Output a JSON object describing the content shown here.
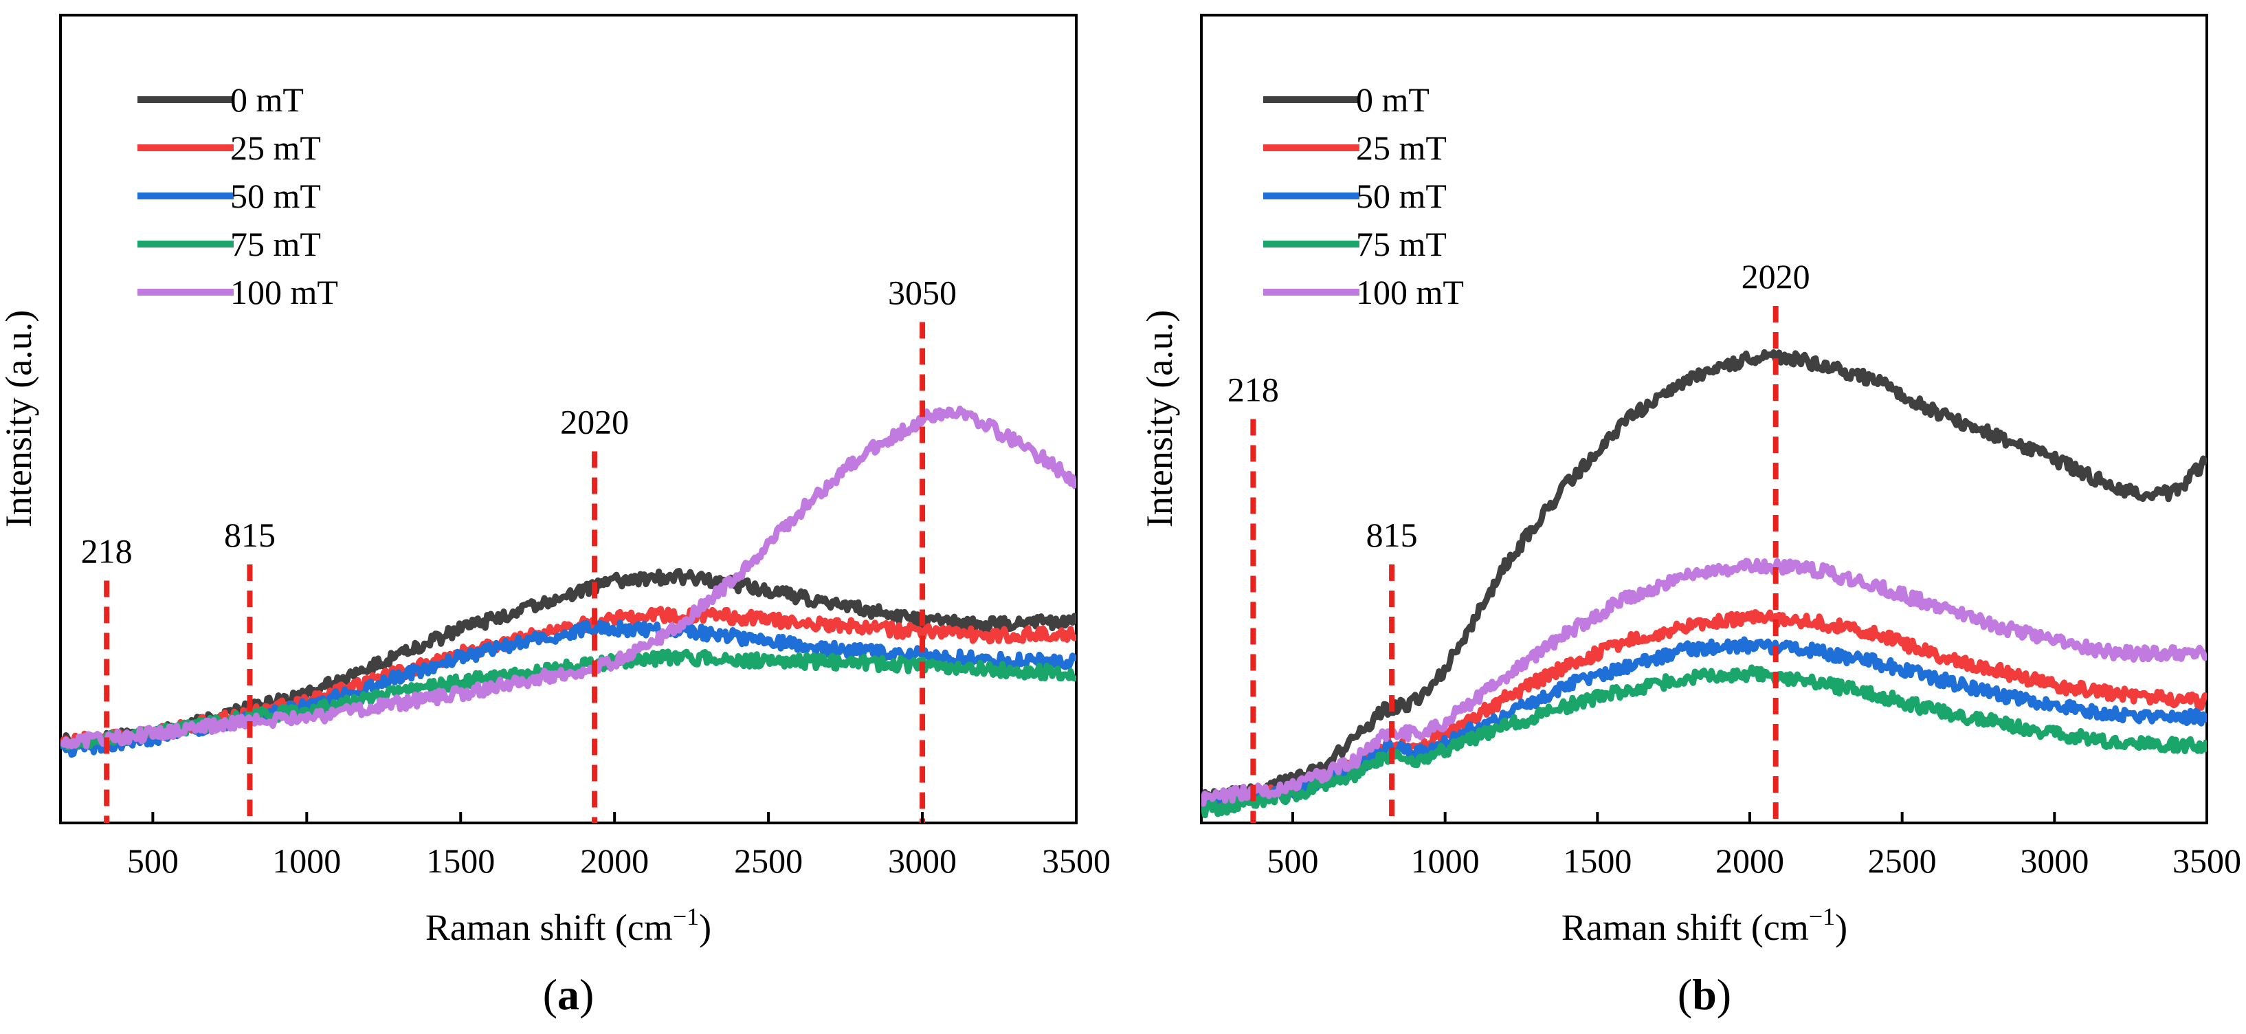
{
  "chart_data": [
    {
      "type": "line",
      "caption_letter": "a",
      "xlabel_main": "Raman shift (cm",
      "xlabel_sup": "−1",
      "xlabel_close": ")",
      "ylabel": "Intensity (a.u.)",
      "xlim": [
        200,
        3500
      ],
      "ylim": [
        0,
        100
      ],
      "y_tick_labels_shown": false,
      "x_ticks": [
        500,
        1000,
        1500,
        2000,
        2500,
        3000,
        3500
      ],
      "legend_position": "top-left",
      "series": [
        {
          "name": "0 mT",
          "color": "#404040",
          "points": [
            [
              200,
              10
            ],
            [
              500,
              11
            ],
            [
              800,
              14
            ],
            [
              1000,
              16
            ],
            [
              1500,
              24
            ],
            [
              2000,
              30
            ],
            [
              2200,
              30.5
            ],
            [
              2400,
              29.5
            ],
            [
              2600,
              28
            ],
            [
              2800,
              26.5
            ],
            [
              3000,
              25
            ],
            [
              3200,
              24.5
            ],
            [
              3500,
              25
            ]
          ]
        },
        {
          "name": "25 mT",
          "color": "#f23b3b",
          "points": [
            [
              200,
              10
            ],
            [
              500,
              11
            ],
            [
              800,
              13.5
            ],
            [
              1000,
              15
            ],
            [
              1500,
              21
            ],
            [
              2000,
              25.5
            ],
            [
              2200,
              25.8
            ],
            [
              2400,
              25.5
            ],
            [
              2600,
              24.8
            ],
            [
              2800,
              24.2
            ],
            [
              3000,
              23.6
            ],
            [
              3200,
              23.2
            ],
            [
              3500,
              23.5
            ]
          ]
        },
        {
          "name": "50 mT",
          "color": "#1f6fd8",
          "points": [
            [
              200,
              9
            ],
            [
              500,
              10.5
            ],
            [
              800,
              13
            ],
            [
              1000,
              14.5
            ],
            [
              1500,
              20.5
            ],
            [
              1900,
              24
            ],
            [
              2200,
              24
            ],
            [
              2400,
              23
            ],
            [
              2600,
              22
            ],
            [
              2800,
              21.2
            ],
            [
              3000,
              20.8
            ],
            [
              3200,
              20.2
            ],
            [
              3500,
              20
            ]
          ]
        },
        {
          "name": "75 mT",
          "color": "#1aa66a",
          "points": [
            [
              200,
              10
            ],
            [
              500,
              11
            ],
            [
              800,
              13
            ],
            [
              1000,
              14
            ],
            [
              1500,
              17.5
            ],
            [
              2000,
              20
            ],
            [
              2200,
              20.5
            ],
            [
              2400,
              20.2
            ],
            [
              2600,
              20
            ],
            [
              2800,
              19.8
            ],
            [
              3000,
              19.5
            ],
            [
              3200,
              19
            ],
            [
              3500,
              18.5
            ]
          ]
        },
        {
          "name": "100 mT",
          "color": "#c07ae0",
          "points": [
            [
              200,
              10
            ],
            [
              500,
              11
            ],
            [
              800,
              12.5
            ],
            [
              1000,
              13
            ],
            [
              1500,
              16
            ],
            [
              1900,
              19
            ],
            [
              2000,
              20
            ],
            [
              2200,
              24
            ],
            [
              2400,
              30.5
            ],
            [
              2600,
              38.5
            ],
            [
              2800,
              45.5
            ],
            [
              3000,
              50
            ],
            [
              3100,
              51
            ],
            [
              3200,
              49.5
            ],
            [
              3400,
              45
            ],
            [
              3500,
              42
            ]
          ]
        }
      ],
      "annotations": [
        {
          "x": 350,
          "y_top": 30,
          "label": "218",
          "label_at": 350
        },
        {
          "x": 815,
          "y_top": 32,
          "label": "815",
          "label_at": 815
        },
        {
          "x": 1935,
          "y_top": 46,
          "label": "2020",
          "label_at": 1935
        },
        {
          "x": 3000,
          "y_top": 62,
          "label": "3050",
          "label_at": 3000
        }
      ]
    },
    {
      "type": "line",
      "caption_letter": "b",
      "xlabel_main": "Raman shift (cm",
      "xlabel_sup": "−1",
      "xlabel_close": ")",
      "ylabel": "Intensity (a.u.)",
      "xlim": [
        200,
        3500
      ],
      "ylim": [
        0,
        100
      ],
      "y_tick_labels_shown": false,
      "x_ticks": [
        500,
        1000,
        1500,
        2000,
        2500,
        3000,
        3500
      ],
      "legend_position": "top-left",
      "series": [
        {
          "name": "0 mT",
          "color": "#404040",
          "points": [
            [
              200,
              3
            ],
            [
              400,
              4
            ],
            [
              600,
              7
            ],
            [
              800,
              14
            ],
            [
              900,
              15
            ],
            [
              1000,
              19
            ],
            [
              1200,
              32
            ],
            [
              1400,
              42
            ],
            [
              1600,
              50
            ],
            [
              1800,
              55
            ],
            [
              2000,
              57.5
            ],
            [
              2100,
              57.8
            ],
            [
              2200,
              57
            ],
            [
              2400,
              55
            ],
            [
              2600,
              51
            ],
            [
              2800,
              48
            ],
            [
              3000,
              45
            ],
            [
              3200,
              41.5
            ],
            [
              3300,
              40.5
            ],
            [
              3400,
              41
            ],
            [
              3500,
              45
            ]
          ]
        },
        {
          "name": "25 mT",
          "color": "#f23b3b",
          "points": [
            [
              200,
              2.5
            ],
            [
              500,
              4
            ],
            [
              700,
              7
            ],
            [
              820,
              10
            ],
            [
              900,
              9
            ],
            [
              1000,
              11
            ],
            [
              1200,
              15.5
            ],
            [
              1400,
              19.5
            ],
            [
              1600,
              22.5
            ],
            [
              1800,
              24.5
            ],
            [
              2000,
              25.5
            ],
            [
              2200,
              25
            ],
            [
              2400,
              23.5
            ],
            [
              2600,
              21
            ],
            [
              2800,
              19
            ],
            [
              3000,
              17
            ],
            [
              3200,
              16
            ],
            [
              3500,
              15
            ]
          ]
        },
        {
          "name": "50 mT",
          "color": "#1f6fd8",
          "points": [
            [
              200,
              2.5
            ],
            [
              500,
              4
            ],
            [
              700,
              6.5
            ],
            [
              820,
              9.5
            ],
            [
              900,
              8.5
            ],
            [
              1000,
              10
            ],
            [
              1200,
              13.5
            ],
            [
              1400,
              17
            ],
            [
              1600,
              19.5
            ],
            [
              1800,
              21.5
            ],
            [
              2000,
              22
            ],
            [
              2200,
              21.3
            ],
            [
              2400,
              20
            ],
            [
              2600,
              18
            ],
            [
              2800,
              16
            ],
            [
              3000,
              14.5
            ],
            [
              3200,
              13.5
            ],
            [
              3500,
              13
            ]
          ]
        },
        {
          "name": "75 mT",
          "color": "#1aa66a",
          "points": [
            [
              200,
              1.5
            ],
            [
              500,
              3.5
            ],
            [
              700,
              6
            ],
            [
              820,
              8.5
            ],
            [
              900,
              7.5
            ],
            [
              1000,
              9
            ],
            [
              1200,
              12
            ],
            [
              1400,
              14.5
            ],
            [
              1600,
              16.5
            ],
            [
              1800,
              18
            ],
            [
              2000,
              18.5
            ],
            [
              2200,
              17.5
            ],
            [
              2400,
              16
            ],
            [
              2600,
              14
            ],
            [
              2800,
              12.5
            ],
            [
              3000,
              11
            ],
            [
              3200,
              10
            ],
            [
              3500,
              9.5
            ]
          ]
        },
        {
          "name": "100 mT",
          "color": "#c07ae0",
          "points": [
            [
              200,
              3
            ],
            [
              500,
              4.5
            ],
            [
              700,
              7.5
            ],
            [
              820,
              11.5
            ],
            [
              900,
              11
            ],
            [
              1000,
              12.5
            ],
            [
              1200,
              18
            ],
            [
              1400,
              23.5
            ],
            [
              1600,
              28
            ],
            [
              1800,
              30.5
            ],
            [
              2000,
              32
            ],
            [
              2200,
              31.5
            ],
            [
              2400,
              29.5
            ],
            [
              2600,
              27
            ],
            [
              2800,
              24.5
            ],
            [
              3000,
              22.5
            ],
            [
              3200,
              21
            ],
            [
              3500,
              21
            ]
          ]
        }
      ],
      "annotations": [
        {
          "x": 370,
          "y_top": 50,
          "label": "218",
          "label_at": 370
        },
        {
          "x": 825,
          "y_top": 32,
          "label": "815",
          "label_at": 825
        },
        {
          "x": 2085,
          "y_top": 64,
          "label": "2020",
          "label_at": 2085
        }
      ]
    }
  ]
}
